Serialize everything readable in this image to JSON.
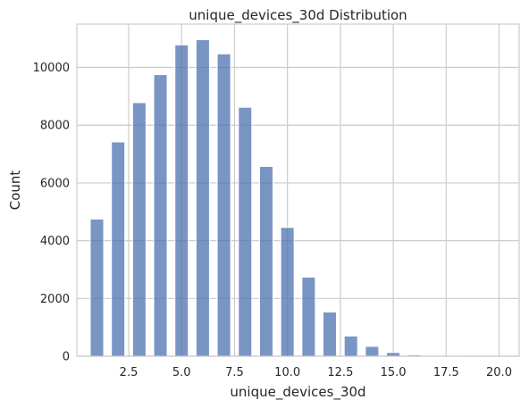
{
  "chart_data": {
    "type": "bar",
    "title": "unique_devices_30d Distribution",
    "xlabel": "unique_devices_30d",
    "ylabel": "Count",
    "xlim": [
      0.05,
      20.95
    ],
    "ylim": [
      0,
      11500
    ],
    "xticks": [
      2.5,
      5.0,
      7.5,
      10.0,
      12.5,
      15.0,
      17.5,
      20.0
    ],
    "xtick_labels": [
      "2.5",
      "5.0",
      "7.5",
      "10.0",
      "12.5",
      "15.0",
      "17.5",
      "20.0"
    ],
    "yticks": [
      0,
      2000,
      4000,
      6000,
      8000,
      10000
    ],
    "ytick_labels": [
      "0",
      "2000",
      "4000",
      "6000",
      "8000",
      "10000"
    ],
    "grid": true,
    "bin_width": 0.6333,
    "bins": [
      {
        "x": 1,
        "count": 4750
      },
      {
        "x": 2,
        "count": 7420
      },
      {
        "x": 3,
        "count": 8780
      },
      {
        "x": 4,
        "count": 9750
      },
      {
        "x": 5,
        "count": 10780
      },
      {
        "x": 6,
        "count": 10960
      },
      {
        "x": 7,
        "count": 10470
      },
      {
        "x": 8,
        "count": 8620
      },
      {
        "x": 9,
        "count": 6570
      },
      {
        "x": 10,
        "count": 4460
      },
      {
        "x": 11,
        "count": 2740
      },
      {
        "x": 12,
        "count": 1530
      },
      {
        "x": 13,
        "count": 700
      },
      {
        "x": 14,
        "count": 340
      },
      {
        "x": 15,
        "count": 130
      },
      {
        "x": 16,
        "count": 45
      },
      {
        "x": 17,
        "count": 20
      },
      {
        "x": 18,
        "count": 8
      },
      {
        "x": 19,
        "count": 3
      },
      {
        "x": 20,
        "count": 2
      }
    ],
    "colors": {
      "bar": "#4c72b0",
      "grid": "#cccccc",
      "text": "#262626"
    }
  }
}
